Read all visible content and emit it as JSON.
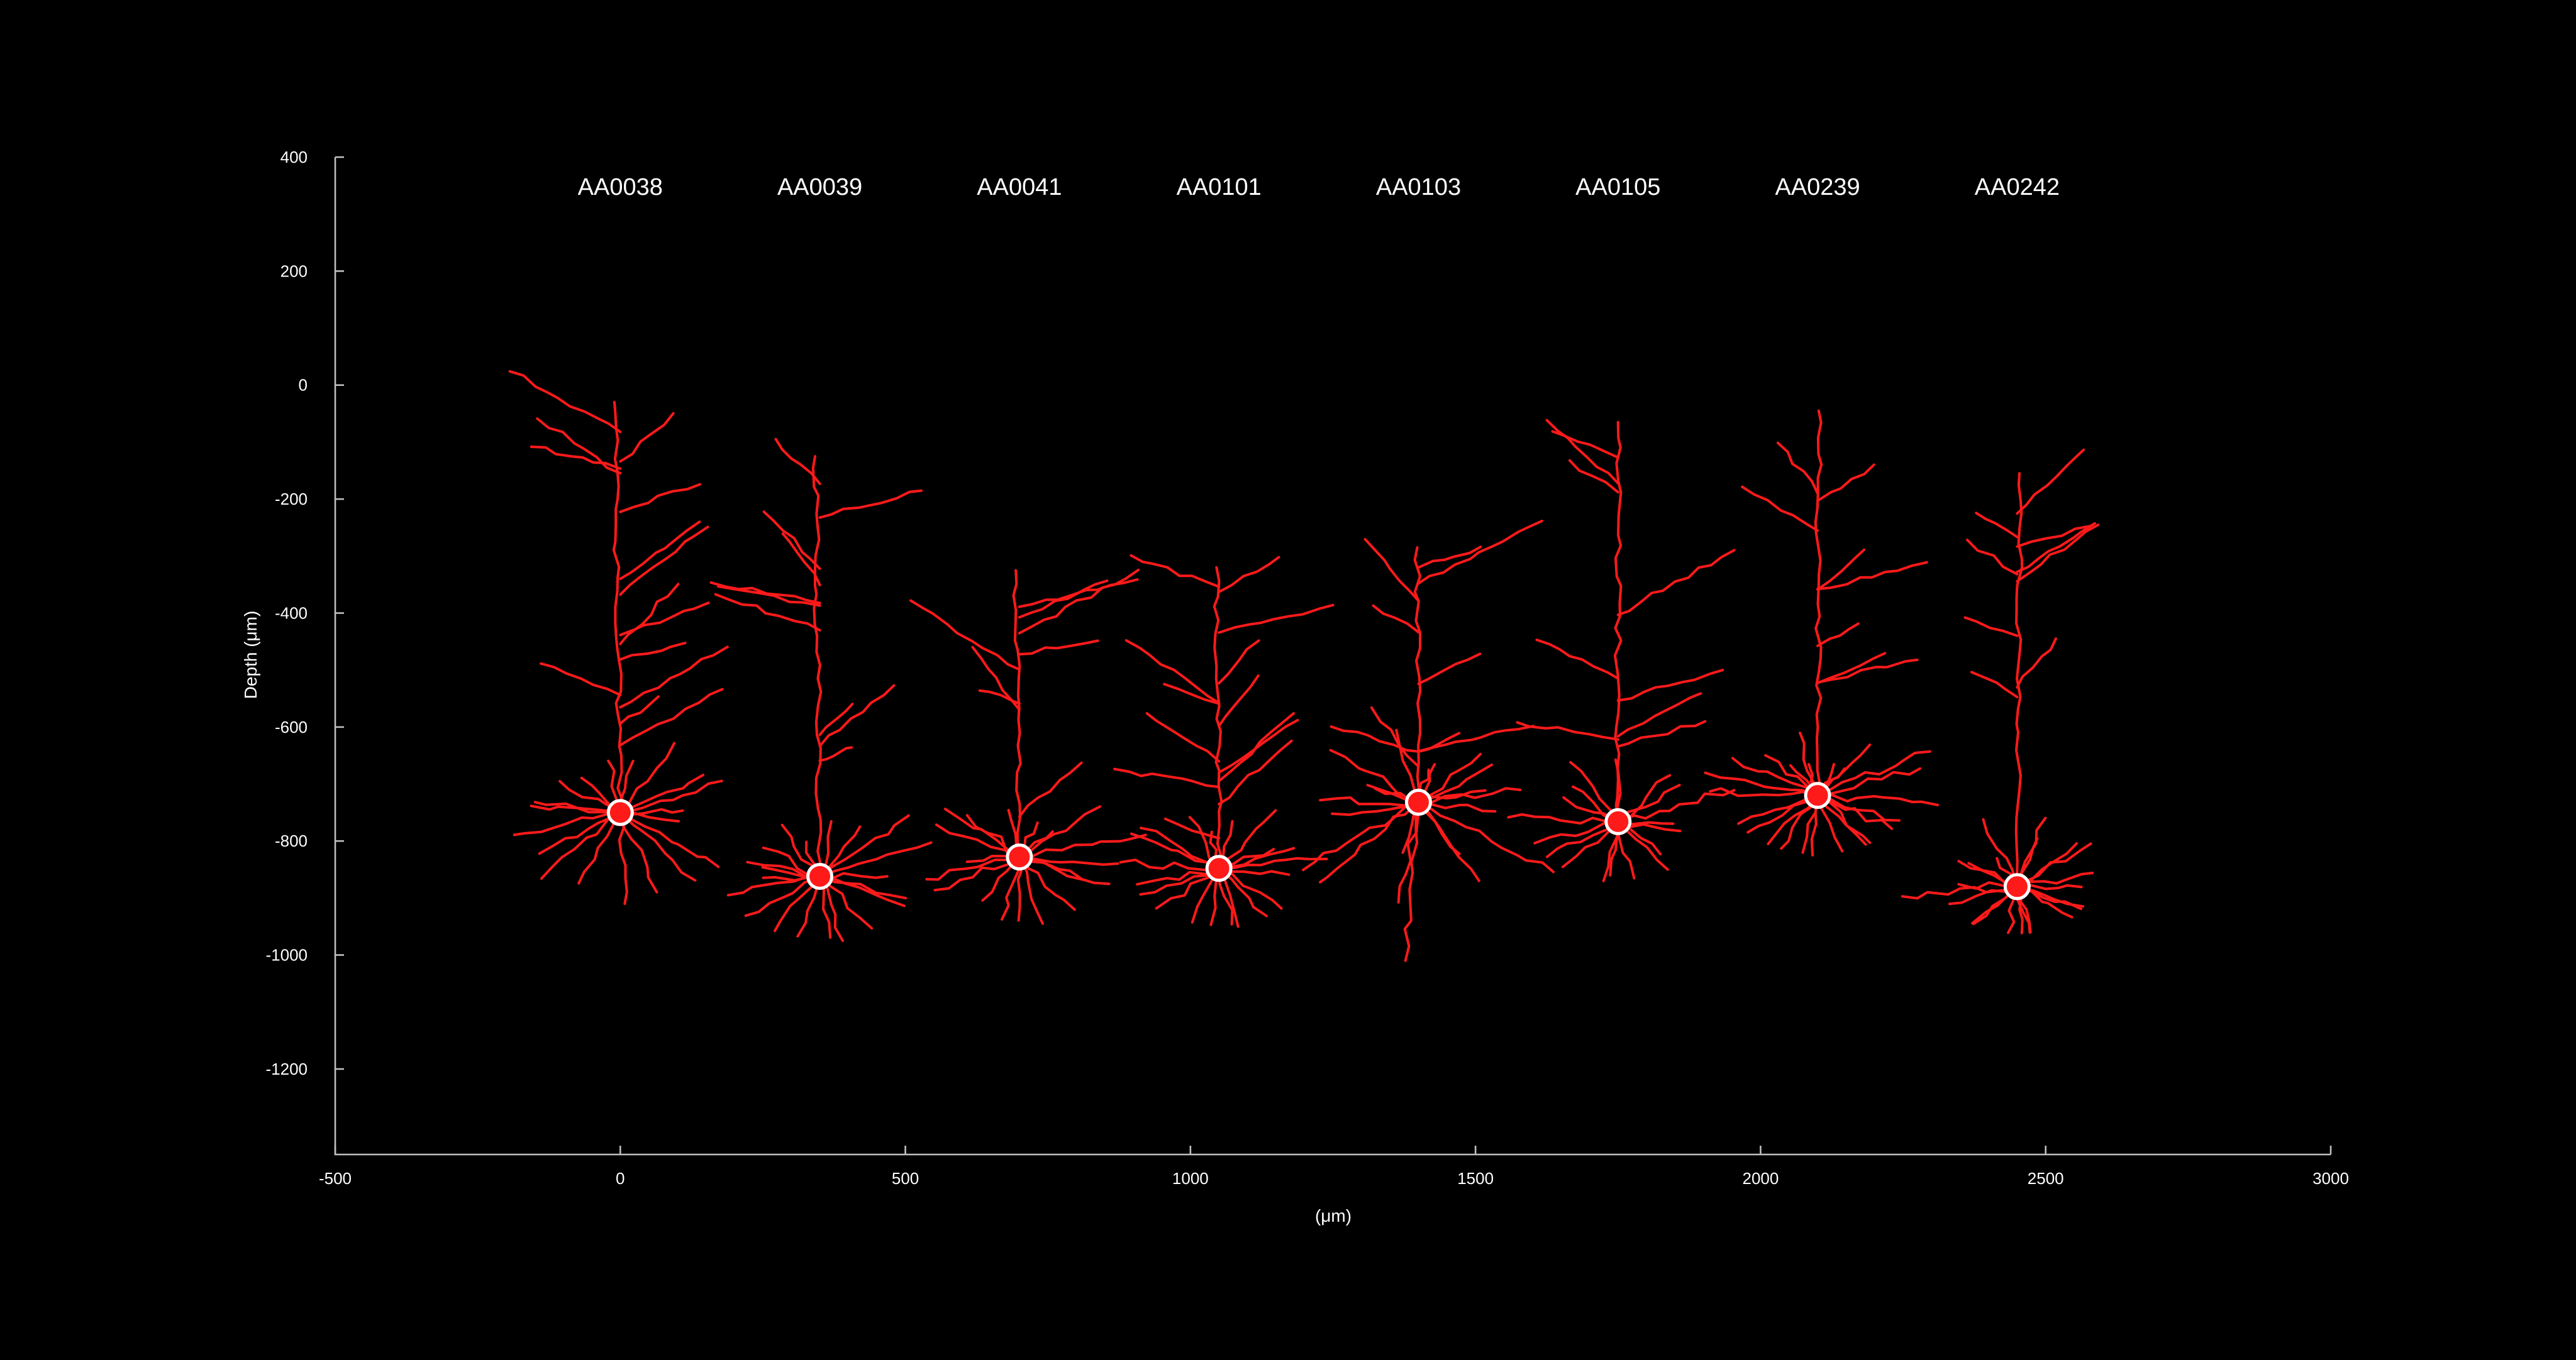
{
  "chart_data": {
    "type": "scatter",
    "xlabel": "(μm)",
    "ylabel": "Depth (μm)",
    "xlim": [
      -500,
      3000
    ],
    "ylim": [
      -1350,
      400
    ],
    "x_ticks": [
      -500,
      0,
      500,
      1000,
      1500,
      2000,
      2500,
      3000
    ],
    "y_ticks": [
      400,
      200,
      0,
      -200,
      -400,
      -600,
      -800,
      -1000,
      -1200
    ],
    "grid": false,
    "colors": {
      "background": "#000000",
      "neuron": "#ff1a1a",
      "soma_outline": "#ffffff",
      "axis": "#bfbfbf",
      "text": "#ffffff"
    },
    "neurons": [
      {
        "name": "AA0038",
        "x": 0,
        "soma_depth": -750,
        "top_depth": -30,
        "bottom_depth": -910
      },
      {
        "name": "AA0039",
        "x": 350,
        "soma_depth": -862,
        "top_depth": -125,
        "bottom_depth": -975
      },
      {
        "name": "AA0041",
        "x": 700,
        "soma_depth": -828,
        "top_depth": -325,
        "bottom_depth": -945
      },
      {
        "name": "AA0101",
        "x": 1050,
        "soma_depth": -848,
        "top_depth": -320,
        "bottom_depth": -950
      },
      {
        "name": "AA0103",
        "x": 1400,
        "soma_depth": -732,
        "top_depth": -285,
        "bottom_depth": -1010
      },
      {
        "name": "AA0105",
        "x": 1750,
        "soma_depth": -766,
        "top_depth": -65,
        "bottom_depth": -870
      },
      {
        "name": "AA0239",
        "x": 2100,
        "soma_depth": -720,
        "top_depth": -45,
        "bottom_depth": -825
      },
      {
        "name": "AA0242",
        "x": 2450,
        "soma_depth": -880,
        "top_depth": -155,
        "bottom_depth": -960
      }
    ]
  }
}
